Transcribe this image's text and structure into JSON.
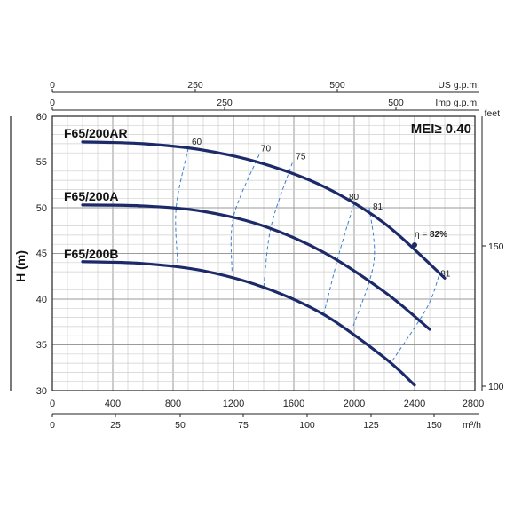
{
  "chart_data": {
    "type": "line",
    "xlabel": "m³/h",
    "ylabel": "H (m)",
    "y_right_label": "feet",
    "xlim": [
      0,
      2800
    ],
    "ylim": [
      30,
      60
    ],
    "x_ticks": [
      "0",
      "400",
      "800",
      "1200",
      "1600",
      "2000",
      "2400",
      "2800"
    ],
    "y_ticks": [
      "30",
      "35",
      "40",
      "45",
      "50",
      "55",
      "60"
    ],
    "secondary_axes": {
      "m3h": {
        "label": "m³/h",
        "ticks": [
          "0",
          "25",
          "50",
          "75",
          "100",
          "125",
          "150"
        ]
      },
      "us_gpm": {
        "label": "US g.p.m.",
        "ticks": [
          "0",
          "250",
          "500"
        ]
      },
      "imp_gpm": {
        "label": "Imp g.p.m.",
        "ticks": [
          "0",
          "250",
          "500"
        ]
      },
      "feet": {
        "label": "feet",
        "ticks": [
          "150",
          "100"
        ]
      }
    },
    "annotation": "MEI≥ 0.40",
    "efficiency_point": {
      "eta_prefix": "η = ",
      "eta_value": "82%"
    },
    "series": [
      {
        "name": "F65/200AR",
        "x": [
          200,
          600,
          1000,
          1400,
          1800,
          2200,
          2600
        ],
        "y": [
          57.2,
          57.0,
          56.3,
          54.8,
          52.3,
          48.3,
          42.3
        ]
      },
      {
        "name": "F65/200A",
        "x": [
          200,
          600,
          1000,
          1400,
          1800,
          2200,
          2500
        ],
        "y": [
          50.3,
          50.2,
          49.6,
          48.0,
          45.1,
          40.8,
          36.7
        ]
      },
      {
        "name": "F65/200B",
        "x": [
          200,
          600,
          1000,
          1400,
          1800,
          2200,
          2400
        ],
        "y": [
          44.1,
          43.9,
          43.1,
          41.3,
          38.3,
          33.6,
          30.6
        ]
      }
    ],
    "efficiency_lines": [
      {
        "label": "60",
        "x": [
          900,
          820,
          830
        ],
        "y": [
          56.5,
          50.0,
          44.0
        ]
      },
      {
        "label": "70",
        "x": [
          1370,
          1200,
          1190
        ],
        "y": [
          55.8,
          49.0,
          43.0
        ]
      },
      {
        "label": "75",
        "x": [
          1590,
          1450,
          1400
        ],
        "y": [
          54.9,
          48.0,
          41.2
        ]
      },
      {
        "label": "80",
        "x": [
          2000,
          1900,
          1800
        ],
        "y": [
          50.5,
          45.0,
          38.5
        ]
      },
      {
        "label": "81",
        "x": [
          2100,
          2130,
          1990
        ],
        "y": [
          50.0,
          44.0,
          36.9
        ]
      },
      {
        "label": "81",
        "x": [
          2560,
          2480,
          2250
        ],
        "y": [
          42.5,
          39.0,
          33.2
        ]
      }
    ],
    "grid": true
  }
}
